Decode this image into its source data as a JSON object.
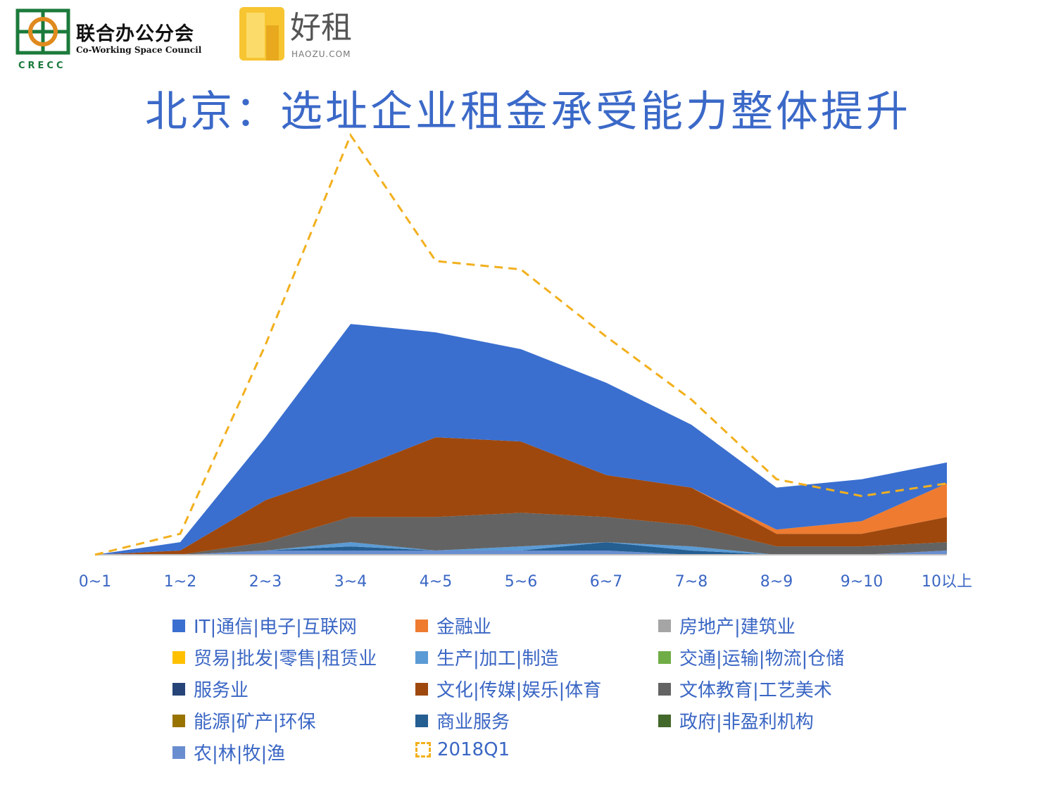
{
  "header": {
    "logo_crecc": {
      "org_name": "联合办公分会",
      "org_name_en": "Co-Working Space Council",
      "abbr": "CRECC"
    },
    "logo_haozu": {
      "name": "好租",
      "domain": "HAOZU.COM"
    },
    "title": "北京：选址企业租金承受能力整体提升"
  },
  "chart_data": {
    "type": "area",
    "title": "北京：选址企业租金承受能力整体提升",
    "xlabel": "",
    "ylabel": "",
    "ylim": [
      0,
      100
    ],
    "grid": false,
    "legend_position": "bottom",
    "categories": [
      "0~1",
      "1~2",
      "2~3",
      "3~4",
      "4~5",
      "5~6",
      "6~7",
      "7~8",
      "8~9",
      "9~10",
      "10以上"
    ],
    "series": [
      {
        "name": "IT|通信|电子|互联网",
        "color": "#3a6fcf",
        "values": [
          0,
          2,
          15,
          35,
          25,
          22,
          22,
          15,
          10,
          10,
          5
        ]
      },
      {
        "name": "金融业",
        "color": "#ee7b30",
        "values": [
          0,
          0,
          0,
          0,
          0,
          0,
          0,
          0,
          1,
          3,
          8
        ]
      },
      {
        "name": "房地产|建筑业",
        "color": "#a5a5a5",
        "values": [
          0,
          0,
          0,
          0,
          0,
          0,
          0,
          0,
          0,
          0,
          0
        ]
      },
      {
        "name": "贸易|批发|零售|租赁业",
        "color": "#ffc000",
        "values": [
          0,
          0,
          0,
          0,
          0,
          0,
          0,
          0,
          0,
          0,
          0
        ]
      },
      {
        "name": "生产|加工|制造",
        "color": "#5b9bd5",
        "values": [
          0,
          0,
          0,
          1,
          0,
          1,
          0,
          1,
          0,
          0,
          0
        ]
      },
      {
        "name": "交通|运输|物流|仓储",
        "color": "#70ad47",
        "values": [
          0,
          0,
          0,
          0,
          0,
          0,
          0,
          0,
          0,
          0,
          0
        ]
      },
      {
        "name": "服务业",
        "color": "#264478",
        "values": [
          0,
          0,
          0,
          0,
          0,
          0,
          0,
          0,
          0,
          0,
          0
        ]
      },
      {
        "name": "文化|传媒|娱乐|体育",
        "color": "#9e480e",
        "values": [
          0,
          1,
          10,
          11,
          19,
          17,
          10,
          9,
          3,
          3,
          6
        ]
      },
      {
        "name": "文体教育|工艺美术",
        "color": "#636363",
        "values": [
          0,
          0,
          2,
          6,
          8,
          8,
          6,
          5,
          2,
          2,
          2
        ]
      },
      {
        "name": "能源|矿产|环保",
        "color": "#997300",
        "values": [
          0,
          0,
          0,
          0,
          0,
          0,
          0,
          0,
          0,
          0,
          0
        ]
      },
      {
        "name": "商业服务",
        "color": "#255e91",
        "values": [
          0,
          0,
          0,
          1,
          0,
          0,
          2,
          1,
          0,
          0,
          0
        ]
      },
      {
        "name": "政府|非盈利机构",
        "color": "#43682b",
        "values": [
          0,
          0,
          0,
          0,
          0,
          0,
          0,
          0,
          0,
          0,
          0
        ]
      },
      {
        "name": "农|林|牧|渔",
        "color": "#698ed0",
        "values": [
          0,
          0,
          1,
          1,
          1,
          1,
          1,
          0,
          0,
          0,
          1
        ]
      }
    ],
    "overlay": {
      "name": "2018Q1",
      "type": "line",
      "style": "dashed",
      "color": "#f2b01e",
      "values": [
        0,
        5,
        50,
        100,
        70,
        68,
        52,
        37,
        18,
        14,
        17
      ]
    }
  }
}
